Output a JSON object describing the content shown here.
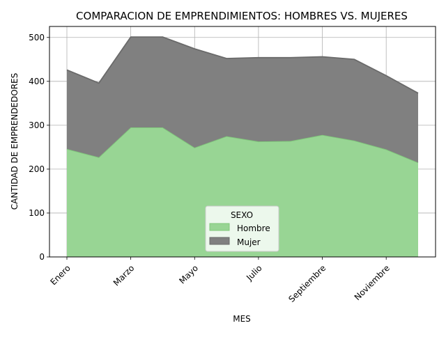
{
  "chart_data": {
    "type": "area",
    "stacked": true,
    "title": "COMPARACION DE EMPRENDIMIENTOS: HOMBRES VS. MUJERES",
    "xlabel": "MES",
    "ylabel": "CANTIDAD DE EMPRENDEDORES",
    "x_tick_labels": [
      "Enero",
      "Marzo",
      "Mayo",
      "Julio",
      "Septiembre",
      "Noviembre"
    ],
    "x_tick_indices": [
      0,
      2,
      4,
      6,
      8,
      10
    ],
    "point_count": 12,
    "ylim": [
      0,
      525
    ],
    "y_ticks": [
      0,
      100,
      200,
      300,
      400,
      500
    ],
    "grid": true,
    "legend": {
      "title": "SEXO",
      "placement": "lower-center"
    },
    "series": [
      {
        "name": "Hombre",
        "color": "#98d594",
        "edge_color": "#7fc77a",
        "values": [
          246,
          227,
          295,
          295,
          249,
          275,
          263,
          264,
          278,
          265,
          245,
          215
        ]
      },
      {
        "name": "Mujer",
        "color": "#808080",
        "edge_color": "#6a6a6a",
        "values": [
          180,
          169,
          206,
          206,
          225,
          177,
          191,
          190,
          178,
          185,
          168,
          158
        ]
      }
    ]
  }
}
